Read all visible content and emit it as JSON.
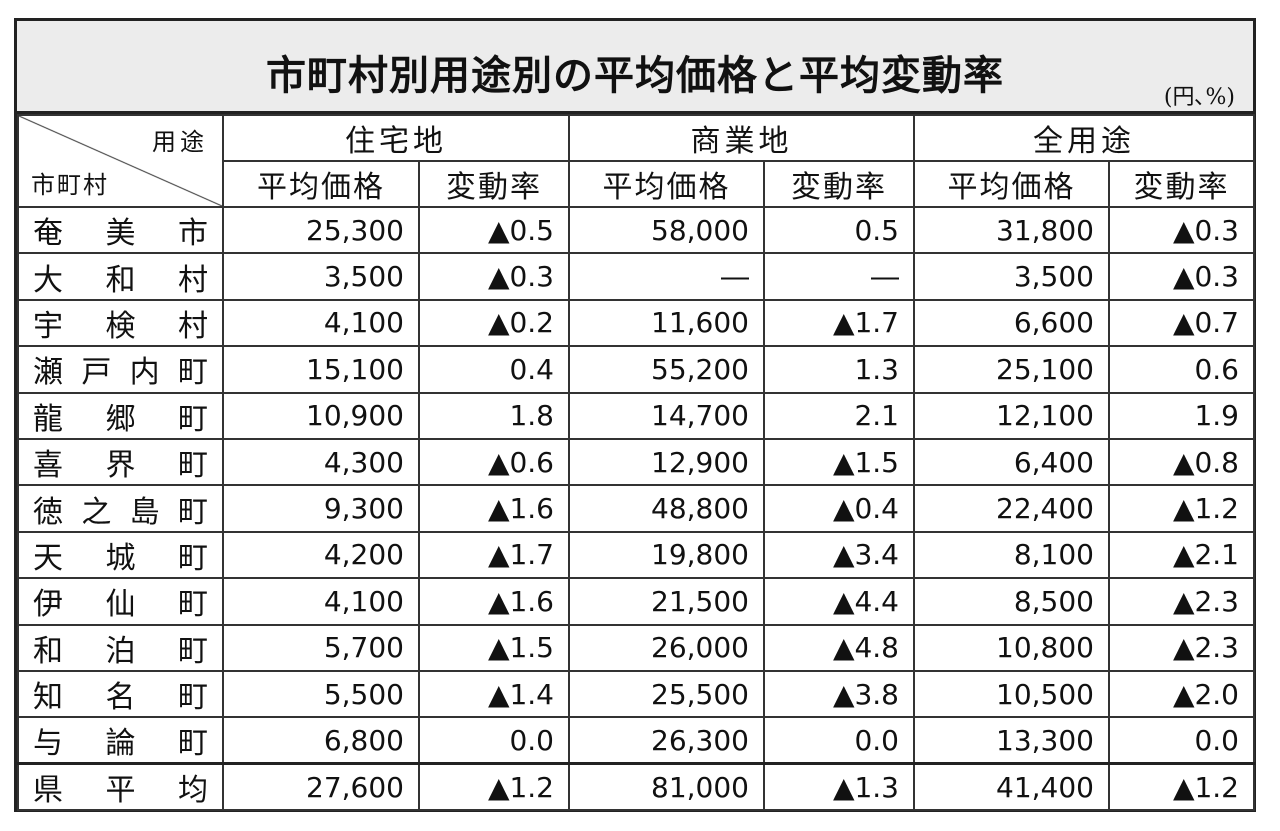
{
  "title": "市町村別用途別の平均価格と平均変動率",
  "unit": "(円､%)",
  "header": {
    "corner_top": "用途",
    "corner_bottom": "市町村",
    "groups": [
      "住宅地",
      "商業地",
      "全用途"
    ],
    "sub": [
      "平均価格",
      "変動率",
      "平均価格",
      "変動率",
      "平均価格",
      "変動率"
    ]
  },
  "rows": [
    {
      "name": "奄美市",
      "cells": [
        "25,300",
        "▲0.5",
        "58,000",
        "0.5",
        "31,800",
        "▲0.3"
      ]
    },
    {
      "name": "大和村",
      "cells": [
        "3,500",
        "▲0.3",
        "―",
        "―",
        "3,500",
        "▲0.3"
      ]
    },
    {
      "name": "宇検村",
      "cells": [
        "4,100",
        "▲0.2",
        "11,600",
        "▲1.7",
        "6,600",
        "▲0.7"
      ]
    },
    {
      "name": "瀬戸内町",
      "cells": [
        "15,100",
        "0.4",
        "55,200",
        "1.3",
        "25,100",
        "0.6"
      ]
    },
    {
      "name": "龍郷町",
      "cells": [
        "10,900",
        "1.8",
        "14,700",
        "2.1",
        "12,100",
        "1.9"
      ]
    },
    {
      "name": "喜界町",
      "cells": [
        "4,300",
        "▲0.6",
        "12,900",
        "▲1.5",
        "6,400",
        "▲0.8"
      ]
    },
    {
      "name": "徳之島町",
      "cells": [
        "9,300",
        "▲1.6",
        "48,800",
        "▲0.4",
        "22,400",
        "▲1.2"
      ]
    },
    {
      "name": "天城町",
      "cells": [
        "4,200",
        "▲1.7",
        "19,800",
        "▲3.4",
        "8,100",
        "▲2.1"
      ]
    },
    {
      "name": "伊仙町",
      "cells": [
        "4,100",
        "▲1.6",
        "21,500",
        "▲4.4",
        "8,500",
        "▲2.3"
      ]
    },
    {
      "name": "和泊町",
      "cells": [
        "5,700",
        "▲1.5",
        "26,000",
        "▲4.8",
        "10,800",
        "▲2.3"
      ]
    },
    {
      "name": "知名町",
      "cells": [
        "5,500",
        "▲1.4",
        "25,500",
        "▲3.8",
        "10,500",
        "▲2.0"
      ]
    },
    {
      "name": "与論町",
      "cells": [
        "6,800",
        "0.0",
        "26,300",
        "0.0",
        "13,300",
        "0.0"
      ]
    },
    {
      "name": "県平均",
      "cells": [
        "27,600",
        "▲1.2",
        "81,000",
        "▲1.3",
        "41,400",
        "▲1.2"
      ]
    }
  ]
}
